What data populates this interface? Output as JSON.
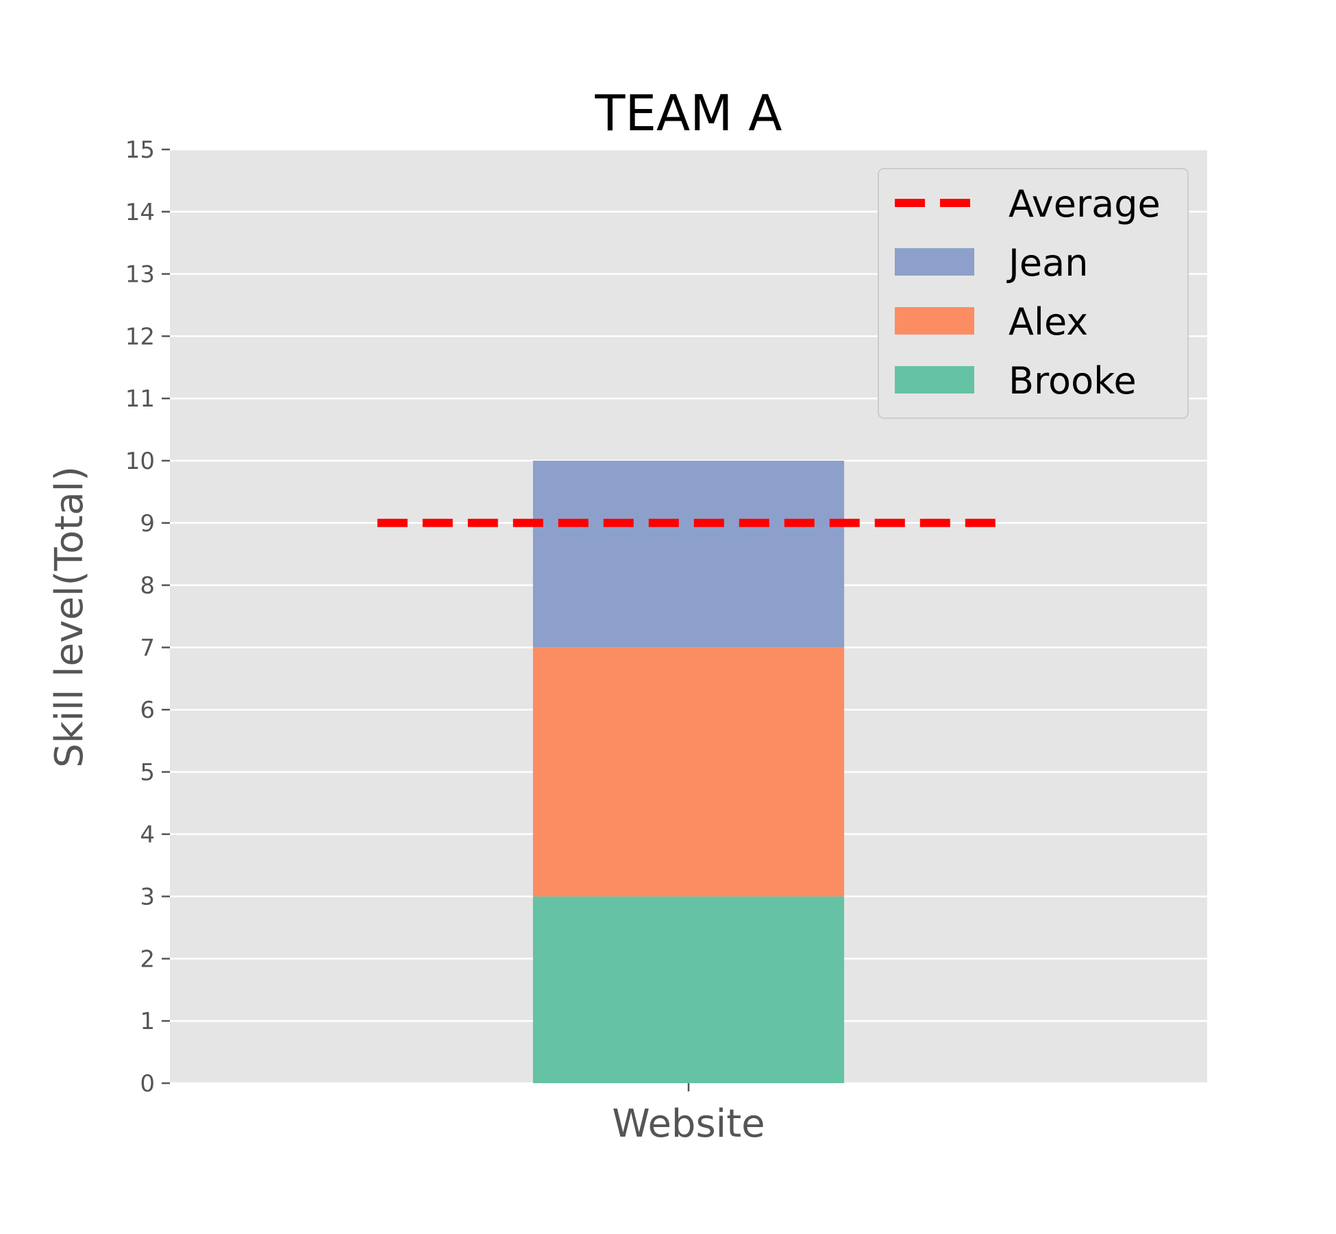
{
  "chart_data": {
    "type": "bar",
    "stacked": true,
    "title": "TEAM A",
    "xlabel": "",
    "ylabel": "Skill level(Total)",
    "categories": [
      "Website"
    ],
    "ylim": [
      0,
      15
    ],
    "yticks": [
      0,
      1,
      2,
      3,
      4,
      5,
      6,
      7,
      8,
      9,
      10,
      11,
      12,
      13,
      14,
      15
    ],
    "grid": true,
    "legend_position": "top-right",
    "series": [
      {
        "name": "Brooke",
        "values": [
          3
        ],
        "color": "#66c2a5"
      },
      {
        "name": "Alex",
        "values": [
          4
        ],
        "color": "#fc8d62"
      },
      {
        "name": "Jean",
        "values": [
          3
        ],
        "color": "#8da0cb"
      }
    ],
    "reference_line": {
      "name": "Average",
      "value": 9,
      "color": "#ff0000",
      "style": "dashed"
    },
    "legend_order": [
      "Average",
      "Jean",
      "Alex",
      "Brooke"
    ]
  }
}
